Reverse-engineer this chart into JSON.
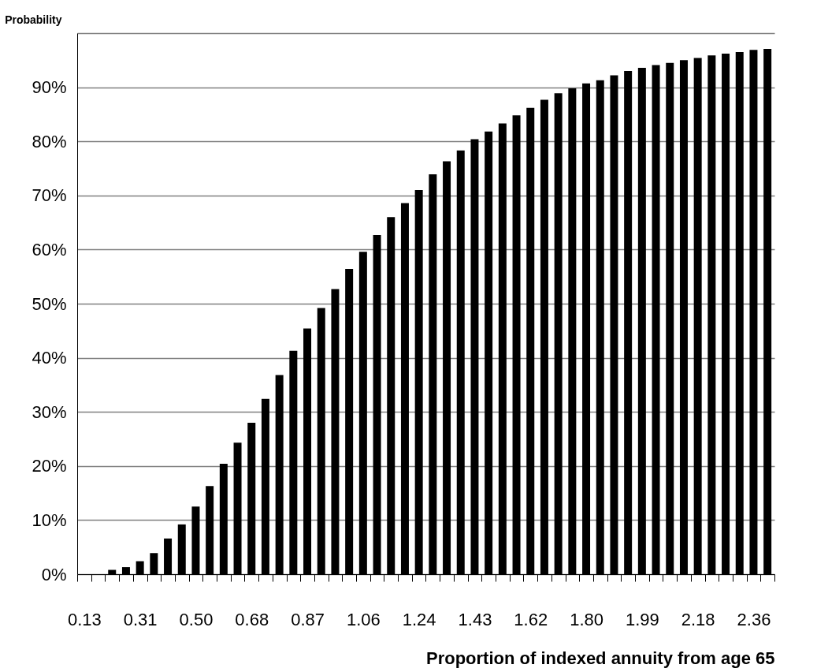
{
  "chart_data": {
    "type": "bar",
    "xlabel": "Proportion of indexed annuity from age 65",
    "ylabel": "Probability",
    "categories": [
      "0.13",
      null,
      null,
      null,
      "0.31",
      null,
      null,
      null,
      "0.50",
      null,
      null,
      null,
      "0.68",
      null,
      null,
      null,
      "0.87",
      null,
      null,
      null,
      "1.06",
      null,
      null,
      null,
      "1.24",
      null,
      null,
      null,
      "1.43",
      null,
      null,
      null,
      "1.62",
      null,
      null,
      null,
      "1.80",
      null,
      null,
      null,
      "1.99",
      null,
      null,
      null,
      "2.18",
      null,
      null,
      null,
      "2.36",
      null
    ],
    "values": [
      0,
      0,
      0.8,
      1.3,
      2.4,
      3.9,
      6.6,
      9.2,
      12.5,
      16.3,
      20.4,
      24.3,
      28.0,
      32.4,
      36.8,
      41.3,
      45.4,
      49.2,
      52.7,
      56.4,
      59.6,
      62.7,
      66.0,
      68.6,
      71.0,
      73.9,
      76.3,
      78.3,
      80.4,
      81.8,
      83.3,
      84.8,
      86.2,
      87.7,
      88.9,
      89.8,
      90.7,
      91.3,
      92.2,
      93.0,
      93.6,
      94.1,
      94.5,
      95.0,
      95.4,
      95.9,
      96.2,
      96.5,
      96.9,
      97.1
    ],
    "color": "#000000",
    "ylim": [
      0,
      100
    ],
    "yticks": [
      {
        "value": 0,
        "label": "0%"
      },
      {
        "value": 10,
        "label": "10%"
      },
      {
        "value": 20,
        "label": "20%"
      },
      {
        "value": 30,
        "label": "30%"
      },
      {
        "value": 40,
        "label": "40%"
      },
      {
        "value": 50,
        "label": "50%"
      },
      {
        "value": 60,
        "label": "60%"
      },
      {
        "value": 70,
        "label": "70%"
      },
      {
        "value": 80,
        "label": "80%"
      },
      {
        "value": 90,
        "label": "90%"
      },
      {
        "value": 100,
        "label": null
      }
    ],
    "grid": "y"
  }
}
